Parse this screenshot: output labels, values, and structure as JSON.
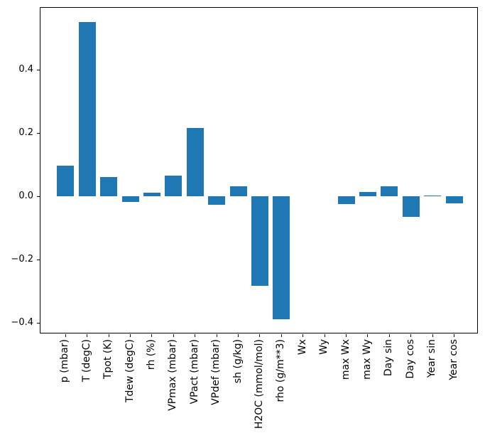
{
  "figure": {
    "background": "#ffffff",
    "axis_color": "#000000",
    "bar_color": "#1f77b4"
  },
  "chart_data": {
    "type": "bar",
    "title": "",
    "xlabel": "",
    "ylabel": "",
    "legend_position": "none",
    "grid": false,
    "categories": [
      "p (mbar)",
      "T (degC)",
      "Tpot (K)",
      "Tdew (degC)",
      "rh (%)",
      "VPmax (mbar)",
      "VPact (mbar)",
      "VPdef (mbar)",
      "sh (g/kg)",
      "H2OC (mmol/mol)",
      "rho (g/m**3)",
      "Wx",
      "Wy",
      "max Wx",
      "max Wy",
      "Day sin",
      "Day cos",
      "Year sin",
      "Year cos"
    ],
    "values": [
      0.097,
      0.551,
      0.061,
      -0.018,
      0.012,
      0.065,
      0.217,
      -0.027,
      0.031,
      -0.282,
      -0.389,
      0.0,
      0.0,
      -0.024,
      0.013,
      0.032,
      -0.064,
      0.003,
      -0.022
    ],
    "ylim": [
      -0.433,
      0.598
    ],
    "yticks": [
      0.4,
      0.2,
      0.0,
      -0.2,
      -0.4
    ],
    "ytick_labels": [
      "0.4",
      "0.2",
      "0.0",
      "−0.2",
      "−0.4"
    ],
    "bar_color": "#1f77b4"
  }
}
